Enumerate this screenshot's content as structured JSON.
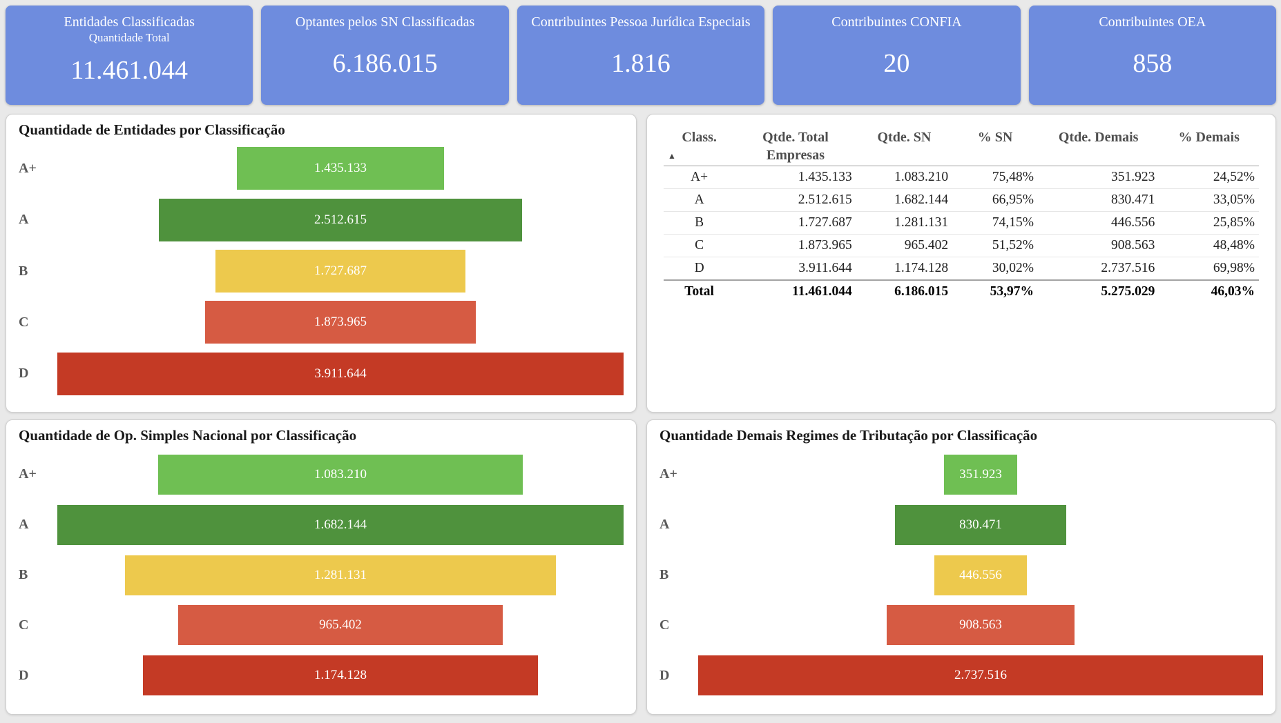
{
  "colors": {
    "page_background": "#e9e9e9",
    "card_blue": "#6e8cde",
    "panel_background": "#ffffff",
    "class_colors": {
      "A+": "#6fbf53",
      "A": "#4f923d",
      "B": "#edc94d",
      "C": "#d65b43",
      "D": "#c43a25"
    },
    "bar_value_text": "#ffffff"
  },
  "kpi_cards": [
    {
      "title": "Entidades Classificadas",
      "subtitle": "Quantidade Total",
      "value": "11.461.044"
    },
    {
      "title": "Optantes pelos SN Classificadas",
      "subtitle": "",
      "value": "6.186.015"
    },
    {
      "title": "Contribuintes Pessoa Jurídica Especiais",
      "subtitle": "",
      "value": "1.816"
    },
    {
      "title": "Contribuintes CONFIA",
      "subtitle": "",
      "value": "20"
    },
    {
      "title": "Contribuintes OEA",
      "subtitle": "",
      "value": "858"
    }
  ],
  "chart_data": [
    {
      "type": "bar",
      "subtype": "funnel-horizontal-centered",
      "title": "Quantidade de Entidades por Classificação",
      "categories": [
        "A+",
        "A",
        "B",
        "C",
        "D"
      ],
      "values": [
        1435133,
        2512615,
        1727687,
        1873965,
        3911644
      ],
      "labels": [
        "1.435.133",
        "2.512.615",
        "1.727.687",
        "1.873.965",
        "3.911.644"
      ],
      "colors": [
        "#6fbf53",
        "#4f923d",
        "#edc94d",
        "#d65b43",
        "#c43a25"
      ],
      "grid": false,
      "legend": "none"
    },
    {
      "type": "table",
      "sort_icon": "▲",
      "columns": [
        "Class.",
        "Qtde. Total Empresas",
        "Qtde. SN",
        "% SN",
        "Qtde. Demais",
        "% Demais"
      ],
      "rows": [
        [
          "A+",
          "1.435.133",
          "1.083.210",
          "75,48%",
          "351.923",
          "24,52%"
        ],
        [
          "A",
          "2.512.615",
          "1.682.144",
          "66,95%",
          "830.471",
          "33,05%"
        ],
        [
          "B",
          "1.727.687",
          "1.281.131",
          "74,15%",
          "446.556",
          "25,85%"
        ],
        [
          "C",
          "1.873.965",
          "965.402",
          "51,52%",
          "908.563",
          "48,48%"
        ],
        [
          "D",
          "3.911.644",
          "1.174.128",
          "30,02%",
          "2.737.516",
          "69,98%"
        ]
      ],
      "total_row": [
        "Total",
        "11.461.044",
        "6.186.015",
        "53,97%",
        "5.275.029",
        "46,03%"
      ]
    },
    {
      "type": "bar",
      "subtype": "funnel-horizontal-centered",
      "title": "Quantidade de Op. Simples Nacional por Classificação",
      "categories": [
        "A+",
        "A",
        "B",
        "C",
        "D"
      ],
      "values": [
        1083210,
        1682144,
        1281131,
        965402,
        1174128
      ],
      "labels": [
        "1.083.210",
        "1.682.144",
        "1.281.131",
        "965.402",
        "1.174.128"
      ],
      "colors": [
        "#6fbf53",
        "#4f923d",
        "#edc94d",
        "#d65b43",
        "#c43a25"
      ],
      "grid": false,
      "legend": "none"
    },
    {
      "type": "bar",
      "subtype": "funnel-horizontal-centered",
      "title": "Quantidade Demais Regimes de Tributação por Classificação",
      "categories": [
        "A+",
        "A",
        "B",
        "C",
        "D"
      ],
      "values": [
        351923,
        830471,
        446556,
        908563,
        2737516
      ],
      "labels": [
        "351.923",
        "830.471",
        "446.556",
        "908.563",
        "2.737.516"
      ],
      "colors": [
        "#6fbf53",
        "#4f923d",
        "#edc94d",
        "#d65b43",
        "#c43a25"
      ],
      "grid": false,
      "legend": "none"
    }
  ]
}
